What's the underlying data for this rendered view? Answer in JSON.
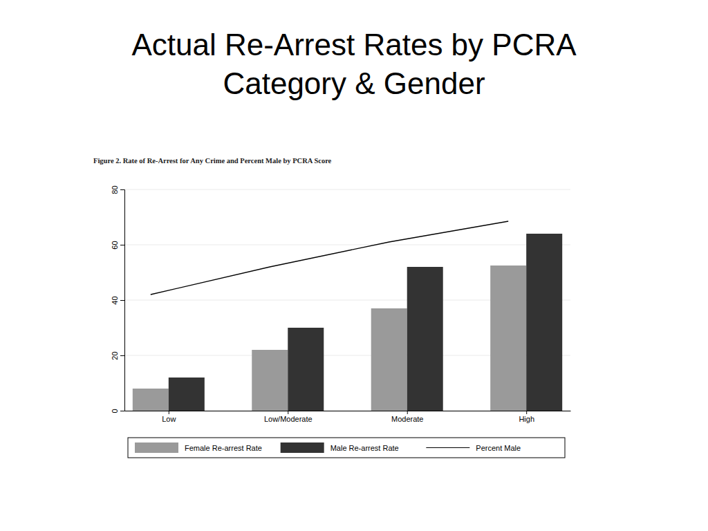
{
  "chart_data": {
    "type": "bar",
    "title": "Actual Re-Arrest Rates by PCRA Category & Gender",
    "subtitle": "Figure 2.  Rate of Re-Arrest for Any Crime and Percent Male by PCRA Score",
    "categories": [
      "Low",
      "Low/Moderate",
      "Moderate",
      "High"
    ],
    "series": [
      {
        "name": "Female Re-arrest Rate",
        "color": "#9a9a9a",
        "values": [
          8,
          22,
          37,
          52.5
        ]
      },
      {
        "name": "Male Re-arrest Rate",
        "color": "#333333",
        "values": [
          12,
          30,
          52,
          64
        ]
      },
      {
        "name": "Percent Male",
        "type": "line",
        "color": "#000000",
        "values": [
          42,
          52,
          61,
          68.5
        ]
      }
    ],
    "ylim": [
      0,
      80
    ],
    "yticks": [
      0,
      20,
      40,
      60,
      80
    ],
    "grid": true,
    "legend": "bottom"
  }
}
